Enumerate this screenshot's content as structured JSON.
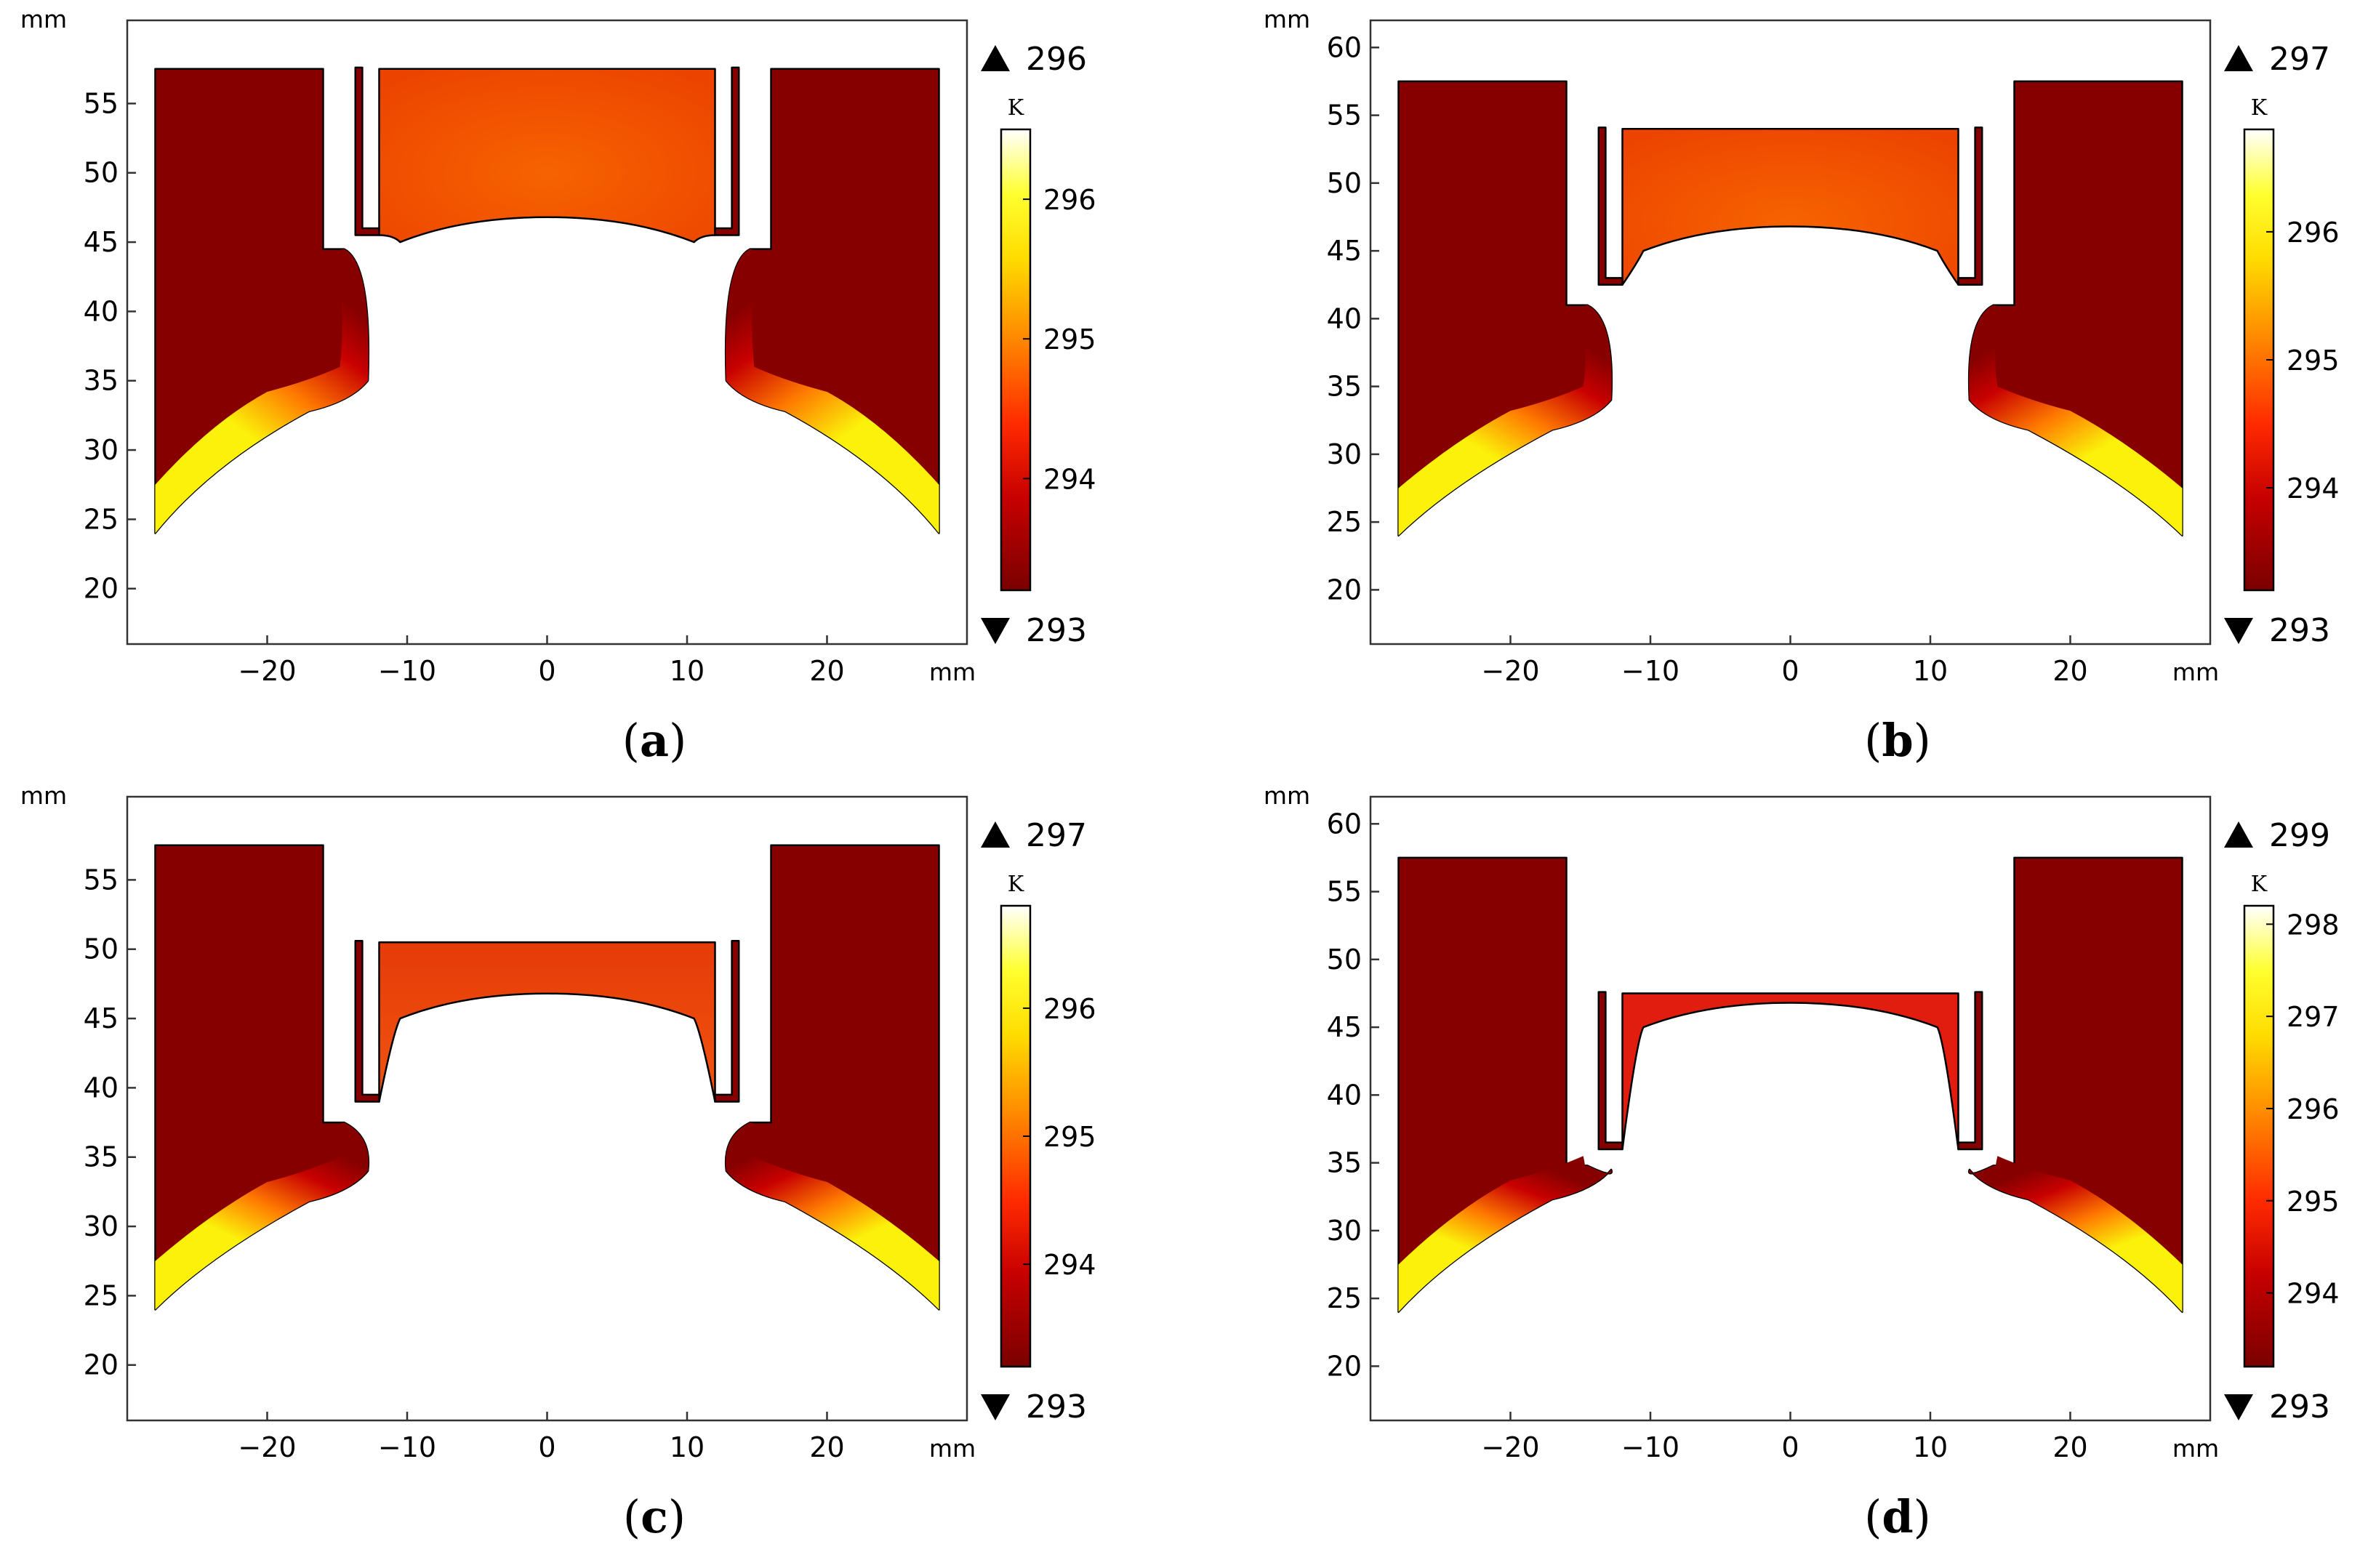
{
  "colors": {
    "dark_red": "#870000",
    "red": "#e01d0e",
    "orange": "#f25a00",
    "yellow": "#fbf10a",
    "white": "#ffffff",
    "axis": "#333333"
  },
  "chart_data": [
    {
      "id": "a",
      "type": "heatmap",
      "caption_letter": "a",
      "x_unit": "mm",
      "y_unit": "mm",
      "xlim": [
        -30,
        30
      ],
      "ylim": [
        16,
        61
      ],
      "xticks": [
        -20,
        -10,
        0,
        10,
        20
      ],
      "yticks": [
        20,
        25,
        30,
        35,
        40,
        45,
        50,
        55
      ],
      "colorbar": {
        "unit": "K",
        "min": 293,
        "max": 296,
        "ticks": [
          294,
          295,
          296
        ],
        "range": [
          293.2,
          296.5
        ]
      },
      "upper_plug_bottom": 57.5,
      "lower_plug_z": 45.5,
      "die_step_z": 44.5,
      "die_bottom_z": 34.0,
      "cup_flat_z": 46.8,
      "plug_color": "orange",
      "edge_bottom_z": 24.0
    },
    {
      "id": "b",
      "type": "heatmap",
      "caption_letter": "b",
      "x_unit": "mm",
      "y_unit": "mm",
      "xlim": [
        -30,
        30
      ],
      "ylim": [
        16,
        62
      ],
      "xticks": [
        -20,
        -10,
        0,
        10,
        20
      ],
      "yticks": [
        20,
        25,
        30,
        35,
        40,
        45,
        50,
        55,
        60
      ],
      "colorbar": {
        "unit": "K",
        "min": 293,
        "max": 297,
        "ticks": [
          294,
          295,
          296
        ],
        "range": [
          293.2,
          296.8
        ]
      },
      "upper_plug_bottom": 54.0,
      "lower_plug_z": 42.5,
      "die_step_z": 41.0,
      "die_bottom_z": 33.0,
      "cup_flat_z": 46.8,
      "plug_color": "orange",
      "edge_bottom_z": 24.0
    },
    {
      "id": "c",
      "type": "heatmap",
      "caption_letter": "c",
      "x_unit": "mm",
      "y_unit": "mm",
      "xlim": [
        -30,
        30
      ],
      "ylim": [
        16,
        61
      ],
      "xticks": [
        -20,
        -10,
        0,
        10,
        20
      ],
      "yticks": [
        20,
        25,
        30,
        35,
        40,
        45,
        50,
        55
      ],
      "colorbar": {
        "unit": "K",
        "min": 293,
        "max": 297,
        "ticks": [
          294,
          295,
          296
        ],
        "range": [
          293.2,
          296.8
        ]
      },
      "upper_plug_bottom": 50.5,
      "lower_plug_z": 39.0,
      "die_step_z": 37.5,
      "die_bottom_z": 33.0,
      "cup_flat_z": 46.8,
      "plug_color": "red_orange",
      "edge_bottom_z": 24.0
    },
    {
      "id": "d",
      "type": "heatmap",
      "caption_letter": "d",
      "x_unit": "mm",
      "y_unit": "mm",
      "xlim": [
        -30,
        30
      ],
      "ylim": [
        16,
        62
      ],
      "xticks": [
        -20,
        -10,
        0,
        10,
        20
      ],
      "yticks": [
        20,
        25,
        30,
        35,
        40,
        45,
        50,
        55,
        60
      ],
      "colorbar": {
        "unit": "K",
        "min": 293,
        "max": 299,
        "ticks": [
          294,
          295,
          296,
          297,
          298
        ],
        "range": [
          293.2,
          298.2
        ]
      },
      "upper_plug_bottom": 47.5,
      "lower_plug_z": 36.0,
      "die_step_z": 34.8,
      "die_bottom_z": 33.5,
      "cup_flat_z": 46.8,
      "plug_color": "red",
      "edge_bottom_z": 24.0
    }
  ]
}
